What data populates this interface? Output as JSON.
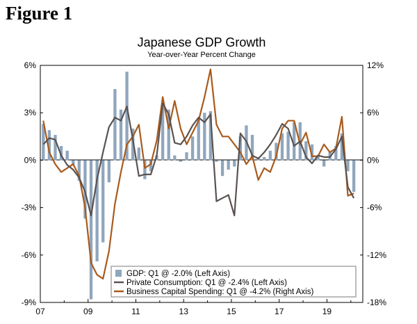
{
  "figure_label": "Figure 1",
  "chart_data": {
    "type": "bar+line",
    "title": "Japanese GDP Growth",
    "subtitle": "Year-over-Year Percent Change",
    "left_axis": {
      "ylim": [
        -9,
        6
      ],
      "ticks": [
        "6%",
        "3%",
        "0%",
        "-3%",
        "-6%",
        "-9%"
      ],
      "tick_values": [
        6,
        3,
        0,
        -3,
        -6,
        -9
      ]
    },
    "right_axis": {
      "ylim": [
        -18,
        12
      ],
      "ticks": [
        "12%",
        "6%",
        "0%",
        "-6%",
        "-12%",
        "-18%"
      ],
      "tick_values": [
        12,
        6,
        0,
        -6,
        -12,
        -18
      ]
    },
    "x_axis": {
      "start": 2007.0,
      "end": 2020.5,
      "ticks": [
        "07",
        "09",
        "11",
        "13",
        "15",
        "17",
        "19"
      ],
      "tick_values": [
        2007,
        2009,
        2011,
        2013,
        2015,
        2017,
        2019
      ]
    },
    "colors": {
      "gdp": "#8fa6bd",
      "consumption": "#5a5250",
      "capex": "#a85a1c"
    },
    "legend": [
      "GDP: Q1 @ -2.0% (Left Axis)",
      "Private Consumption: Q1 @ -2.4% (Left Axis)",
      "Business Capital Spending: Q1 @ -4.2% (Right Axis)"
    ],
    "quarters": [
      "2007Q1",
      "2007Q2",
      "2007Q3",
      "2007Q4",
      "2008Q1",
      "2008Q2",
      "2008Q3",
      "2008Q4",
      "2009Q1",
      "2009Q2",
      "2009Q3",
      "2009Q4",
      "2010Q1",
      "2010Q2",
      "2010Q3",
      "2010Q4",
      "2011Q1",
      "2011Q2",
      "2011Q3",
      "2011Q4",
      "2012Q1",
      "2012Q2",
      "2012Q3",
      "2012Q4",
      "2013Q1",
      "2013Q2",
      "2013Q3",
      "2013Q4",
      "2014Q1",
      "2014Q2",
      "2014Q3",
      "2014Q4",
      "2015Q1",
      "2015Q2",
      "2015Q3",
      "2015Q4",
      "2016Q1",
      "2016Q2",
      "2016Q3",
      "2016Q4",
      "2017Q1",
      "2017Q2",
      "2017Q3",
      "2017Q4",
      "2018Q1",
      "2018Q2",
      "2018Q3",
      "2018Q4",
      "2019Q1",
      "2019Q2",
      "2019Q3",
      "2019Q4",
      "2020Q1"
    ],
    "series": [
      {
        "name": "GDP",
        "axis": "left",
        "kind": "bar",
        "values": [
          2.3,
          1.9,
          1.6,
          0.9,
          0.6,
          -0.3,
          -1.3,
          -3.7,
          -8.8,
          -6.4,
          -5.2,
          -1.4,
          4.5,
          3.2,
          5.6,
          2.0,
          0.8,
          -1.2,
          -0.7,
          0.3,
          3.4,
          3.2,
          0.3,
          -0.1,
          0.5,
          1.5,
          2.6,
          3.0,
          3.1,
          -0.1,
          -1.0,
          -0.6,
          -0.4,
          1.5,
          2.2,
          1.6,
          0.2,
          0.2,
          0.6,
          1.1,
          1.7,
          1.8,
          2.4,
          2.4,
          1.2,
          1.0,
          0.3,
          -0.4,
          0.5,
          0.9,
          1.7,
          -0.7,
          -2.0
        ]
      },
      {
        "name": "Private Consumption",
        "axis": "left",
        "kind": "line",
        "values": [
          1.0,
          1.4,
          1.3,
          0.3,
          -0.3,
          -0.6,
          -1.1,
          -2.0,
          -3.5,
          -1.2,
          0.5,
          2.1,
          2.7,
          2.5,
          3.4,
          1.3,
          -1.0,
          -0.9,
          -0.9,
          0.3,
          3.6,
          2.9,
          1.1,
          1.0,
          1.5,
          2.2,
          2.7,
          2.4,
          2.9,
          -2.6,
          -2.4,
          -2.2,
          -3.5,
          1.7,
          1.2,
          0.3,
          0.1,
          0.5,
          1.0,
          1.6,
          2.3,
          2.0,
          0.9,
          1.2,
          0.2,
          -0.2,
          0.3,
          0.2,
          0.2,
          0.7,
          1.5,
          -1.7,
          -2.4
        ]
      },
      {
        "name": "Business Capital Spending",
        "axis": "right",
        "kind": "line",
        "values": [
          5.0,
          1.0,
          -0.5,
          -1.5,
          -1.0,
          -0.5,
          -2.0,
          -6.0,
          -13.0,
          -14.5,
          -15.0,
          -11.5,
          -5.5,
          -1.5,
          2.0,
          3.0,
          4.5,
          -1.0,
          -0.5,
          2.5,
          8.0,
          4.0,
          7.5,
          4.0,
          2.0,
          3.5,
          5.0,
          8.0,
          11.5,
          4.5,
          3.0,
          3.0,
          2.0,
          1.0,
          -0.5,
          0.5,
          -2.5,
          -1.0,
          -1.5,
          0.5,
          4.0,
          5.0,
          5.0,
          2.0,
          3.5,
          0.5,
          0.5,
          2.0,
          1.0,
          1.5,
          5.5,
          -4.5,
          -4.2
        ]
      }
    ]
  }
}
